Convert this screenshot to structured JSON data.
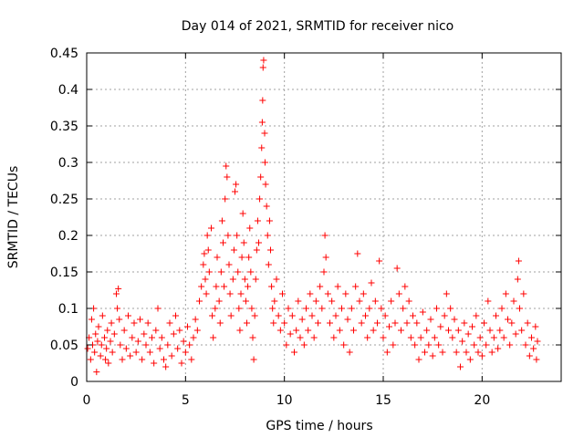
{
  "chart_data": {
    "type": "scatter",
    "title": "Day 014 of 2021, SRMTID for receiver nico",
    "xlabel": "GPS time / hours",
    "ylabel": "SRMTID / TECUs",
    "xlim": [
      0,
      24
    ],
    "ylim": [
      0,
      0.45
    ],
    "x_ticks": [
      0,
      5,
      10,
      15,
      20
    ],
    "x_tick_labels": [
      "0",
      "5",
      "10",
      "15",
      "20"
    ],
    "y_ticks": [
      0,
      0.05,
      0.1,
      0.15,
      0.2,
      0.25,
      0.3,
      0.35,
      0.4,
      0.45
    ],
    "y_tick_labels": [
      "0",
      "0.05",
      "0.1",
      "0.15",
      "0.2",
      "0.25",
      "0.3",
      "0.35",
      "0.4",
      "0.45"
    ],
    "grid": true,
    "marker": "+",
    "color": "#ff0000",
    "series": [
      {
        "name": "SRMTID",
        "points": [
          [
            0.05,
            0.045
          ],
          [
            0.12,
            0.06
          ],
          [
            0.2,
            0.03
          ],
          [
            0.25,
            0.085
          ],
          [
            0.3,
            0.05
          ],
          [
            0.35,
            0.1
          ],
          [
            0.4,
            0.04
          ],
          [
            0.45,
            0.065
          ],
          [
            0.5,
            0.013
          ],
          [
            0.55,
            0.055
          ],
          [
            0.6,
            0.075
          ],
          [
            0.7,
            0.035
          ],
          [
            0.75,
            0.05
          ],
          [
            0.8,
            0.09
          ],
          [
            0.9,
            0.06
          ],
          [
            0.95,
            0.03
          ],
          [
            1.0,
            0.045
          ],
          [
            1.05,
            0.07
          ],
          [
            1.1,
            0.025
          ],
          [
            1.2,
            0.055
          ],
          [
            1.25,
            0.08
          ],
          [
            1.3,
            0.04
          ],
          [
            1.4,
            0.065
          ],
          [
            1.5,
            0.12
          ],
          [
            1.55,
            0.1
          ],
          [
            1.6,
            0.127
          ],
          [
            1.65,
            0.085
          ],
          [
            1.7,
            0.05
          ],
          [
            1.8,
            0.03
          ],
          [
            1.9,
            0.07
          ],
          [
            2.0,
            0.045
          ],
          [
            2.1,
            0.09
          ],
          [
            2.2,
            0.035
          ],
          [
            2.3,
            0.06
          ],
          [
            2.4,
            0.08
          ],
          [
            2.5,
            0.04
          ],
          [
            2.6,
            0.055
          ],
          [
            2.7,
            0.085
          ],
          [
            2.8,
            0.03
          ],
          [
            2.9,
            0.065
          ],
          [
            3.0,
            0.05
          ],
          [
            3.1,
            0.08
          ],
          [
            3.2,
            0.04
          ],
          [
            3.3,
            0.06
          ],
          [
            3.4,
            0.025
          ],
          [
            3.5,
            0.07
          ],
          [
            3.6,
            0.1
          ],
          [
            3.7,
            0.045
          ],
          [
            3.8,
            0.06
          ],
          [
            3.9,
            0.03
          ],
          [
            4.0,
            0.02
          ],
          [
            4.1,
            0.05
          ],
          [
            4.2,
            0.08
          ],
          [
            4.3,
            0.035
          ],
          [
            4.4,
            0.065
          ],
          [
            4.5,
            0.09
          ],
          [
            4.6,
            0.045
          ],
          [
            4.7,
            0.07
          ],
          [
            4.8,
            0.025
          ],
          [
            4.9,
            0.055
          ],
          [
            5.0,
            0.04
          ],
          [
            5.1,
            0.075
          ],
          [
            5.2,
            0.05
          ],
          [
            5.3,
            0.03
          ],
          [
            5.4,
            0.06
          ],
          [
            5.5,
            0.085
          ],
          [
            5.6,
            0.07
          ],
          [
            5.7,
            0.11
          ],
          [
            5.8,
            0.13
          ],
          [
            5.9,
            0.16
          ],
          [
            5.95,
            0.175
          ],
          [
            6.0,
            0.14
          ],
          [
            6.05,
            0.12
          ],
          [
            6.1,
            0.2
          ],
          [
            6.15,
            0.18
          ],
          [
            6.2,
            0.15
          ],
          [
            6.3,
            0.21
          ],
          [
            6.35,
            0.09
          ],
          [
            6.4,
            0.06
          ],
          [
            6.5,
            0.1
          ],
          [
            6.55,
            0.13
          ],
          [
            6.6,
            0.17
          ],
          [
            6.7,
            0.11
          ],
          [
            6.75,
            0.08
          ],
          [
            6.8,
            0.15
          ],
          [
            6.85,
            0.22
          ],
          [
            6.9,
            0.19
          ],
          [
            6.95,
            0.13
          ],
          [
            7.0,
            0.25
          ],
          [
            7.05,
            0.295
          ],
          [
            7.1,
            0.28
          ],
          [
            7.15,
            0.2
          ],
          [
            7.2,
            0.16
          ],
          [
            7.25,
            0.12
          ],
          [
            7.3,
            0.09
          ],
          [
            7.4,
            0.14
          ],
          [
            7.45,
            0.18
          ],
          [
            7.5,
            0.26
          ],
          [
            7.55,
            0.27
          ],
          [
            7.6,
            0.2
          ],
          [
            7.65,
            0.15
          ],
          [
            7.7,
            0.1
          ],
          [
            7.75,
            0.07
          ],
          [
            7.8,
            0.12
          ],
          [
            7.85,
            0.17
          ],
          [
            7.9,
            0.23
          ],
          [
            7.95,
            0.19
          ],
          [
            8.0,
            0.14
          ],
          [
            8.05,
            0.11
          ],
          [
            8.1,
            0.08
          ],
          [
            8.15,
            0.13
          ],
          [
            8.2,
            0.17
          ],
          [
            8.25,
            0.21
          ],
          [
            8.3,
            0.15
          ],
          [
            8.35,
            0.1
          ],
          [
            8.4,
            0.06
          ],
          [
            8.45,
            0.03
          ],
          [
            8.5,
            0.09
          ],
          [
            8.55,
            0.14
          ],
          [
            8.6,
            0.18
          ],
          [
            8.65,
            0.22
          ],
          [
            8.7,
            0.19
          ],
          [
            8.75,
            0.25
          ],
          [
            8.8,
            0.28
          ],
          [
            8.85,
            0.32
          ],
          [
            8.88,
            0.355
          ],
          [
            8.9,
            0.385
          ],
          [
            8.92,
            0.43
          ],
          [
            8.95,
            0.44
          ],
          [
            9.0,
            0.34
          ],
          [
            9.02,
            0.3
          ],
          [
            9.05,
            0.27
          ],
          [
            9.1,
            0.24
          ],
          [
            9.15,
            0.2
          ],
          [
            9.2,
            0.16
          ],
          [
            9.25,
            0.22
          ],
          [
            9.3,
            0.18
          ],
          [
            9.35,
            0.13
          ],
          [
            9.4,
            0.1
          ],
          [
            9.45,
            0.08
          ],
          [
            9.5,
            0.11
          ],
          [
            9.6,
            0.14
          ],
          [
            9.7,
            0.09
          ],
          [
            9.8,
            0.07
          ],
          [
            9.9,
            0.12
          ],
          [
            10.0,
            0.08
          ],
          [
            10.1,
            0.05
          ],
          [
            10.2,
            0.1
          ],
          [
            10.3,
            0.065
          ],
          [
            10.4,
            0.09
          ],
          [
            10.5,
            0.04
          ],
          [
            10.6,
            0.07
          ],
          [
            10.7,
            0.11
          ],
          [
            10.8,
            0.06
          ],
          [
            10.9,
            0.085
          ],
          [
            11.0,
            0.05
          ],
          [
            11.1,
            0.1
          ],
          [
            11.2,
            0.07
          ],
          [
            11.3,
            0.12
          ],
          [
            11.4,
            0.09
          ],
          [
            11.5,
            0.06
          ],
          [
            11.6,
            0.11
          ],
          [
            11.7,
            0.08
          ],
          [
            11.8,
            0.13
          ],
          [
            11.9,
            0.1
          ],
          [
            12.0,
            0.15
          ],
          [
            12.05,
            0.2
          ],
          [
            12.1,
            0.17
          ],
          [
            12.2,
            0.12
          ],
          [
            12.3,
            0.08
          ],
          [
            12.4,
            0.11
          ],
          [
            12.5,
            0.06
          ],
          [
            12.6,
            0.09
          ],
          [
            12.7,
            0.13
          ],
          [
            12.8,
            0.07
          ],
          [
            12.9,
            0.1
          ],
          [
            13.0,
            0.05
          ],
          [
            13.1,
            0.12
          ],
          [
            13.2,
            0.085
          ],
          [
            13.3,
            0.04
          ],
          [
            13.4,
            0.1
          ],
          [
            13.5,
            0.07
          ],
          [
            13.6,
            0.13
          ],
          [
            13.7,
            0.175
          ],
          [
            13.8,
            0.11
          ],
          [
            13.9,
            0.08
          ],
          [
            14.0,
            0.12
          ],
          [
            14.1,
            0.09
          ],
          [
            14.2,
            0.06
          ],
          [
            14.3,
            0.1
          ],
          [
            14.4,
            0.135
          ],
          [
            14.5,
            0.07
          ],
          [
            14.6,
            0.11
          ],
          [
            14.7,
            0.08
          ],
          [
            14.8,
            0.165
          ],
          [
            14.9,
            0.1
          ],
          [
            15.0,
            0.06
          ],
          [
            15.1,
            0.09
          ],
          [
            15.2,
            0.04
          ],
          [
            15.3,
            0.075
          ],
          [
            15.4,
            0.11
          ],
          [
            15.5,
            0.05
          ],
          [
            15.6,
            0.08
          ],
          [
            15.7,
            0.155
          ],
          [
            15.8,
            0.12
          ],
          [
            15.9,
            0.07
          ],
          [
            16.0,
            0.1
          ],
          [
            16.1,
            0.13
          ],
          [
            16.2,
            0.08
          ],
          [
            16.3,
            0.11
          ],
          [
            16.4,
            0.06
          ],
          [
            16.5,
            0.09
          ],
          [
            16.6,
            0.05
          ],
          [
            16.7,
            0.08
          ],
          [
            16.8,
            0.03
          ],
          [
            16.9,
            0.06
          ],
          [
            17.0,
            0.095
          ],
          [
            17.1,
            0.04
          ],
          [
            17.2,
            0.07
          ],
          [
            17.3,
            0.05
          ],
          [
            17.4,
            0.085
          ],
          [
            17.5,
            0.035
          ],
          [
            17.6,
            0.06
          ],
          [
            17.7,
            0.1
          ],
          [
            17.8,
            0.05
          ],
          [
            17.9,
            0.075
          ],
          [
            18.0,
            0.04
          ],
          [
            18.1,
            0.09
          ],
          [
            18.2,
            0.12
          ],
          [
            18.3,
            0.07
          ],
          [
            18.4,
            0.1
          ],
          [
            18.5,
            0.06
          ],
          [
            18.6,
            0.085
          ],
          [
            18.7,
            0.04
          ],
          [
            18.8,
            0.07
          ],
          [
            18.9,
            0.02
          ],
          [
            19.0,
            0.055
          ],
          [
            19.1,
            0.08
          ],
          [
            19.2,
            0.04
          ],
          [
            19.3,
            0.065
          ],
          [
            19.4,
            0.03
          ],
          [
            19.5,
            0.075
          ],
          [
            19.6,
            0.05
          ],
          [
            19.7,
            0.09
          ],
          [
            19.8,
            0.04
          ],
          [
            19.9,
            0.06
          ],
          [
            20.0,
            0.035
          ],
          [
            20.1,
            0.08
          ],
          [
            20.2,
            0.05
          ],
          [
            20.3,
            0.11
          ],
          [
            20.4,
            0.07
          ],
          [
            20.5,
            0.04
          ],
          [
            20.6,
            0.06
          ],
          [
            20.7,
            0.09
          ],
          [
            20.8,
            0.045
          ],
          [
            20.9,
            0.07
          ],
          [
            21.0,
            0.1
          ],
          [
            21.1,
            0.06
          ],
          [
            21.2,
            0.12
          ],
          [
            21.3,
            0.085
          ],
          [
            21.4,
            0.05
          ],
          [
            21.5,
            0.08
          ],
          [
            21.6,
            0.11
          ],
          [
            21.7,
            0.065
          ],
          [
            21.8,
            0.14
          ],
          [
            21.85,
            0.165
          ],
          [
            21.9,
            0.1
          ],
          [
            22.0,
            0.07
          ],
          [
            22.1,
            0.12
          ],
          [
            22.2,
            0.05
          ],
          [
            22.3,
            0.08
          ],
          [
            22.4,
            0.035
          ],
          [
            22.5,
            0.06
          ],
          [
            22.6,
            0.045
          ],
          [
            22.7,
            0.075
          ],
          [
            22.75,
            0.03
          ],
          [
            22.8,
            0.055
          ]
        ]
      }
    ]
  }
}
